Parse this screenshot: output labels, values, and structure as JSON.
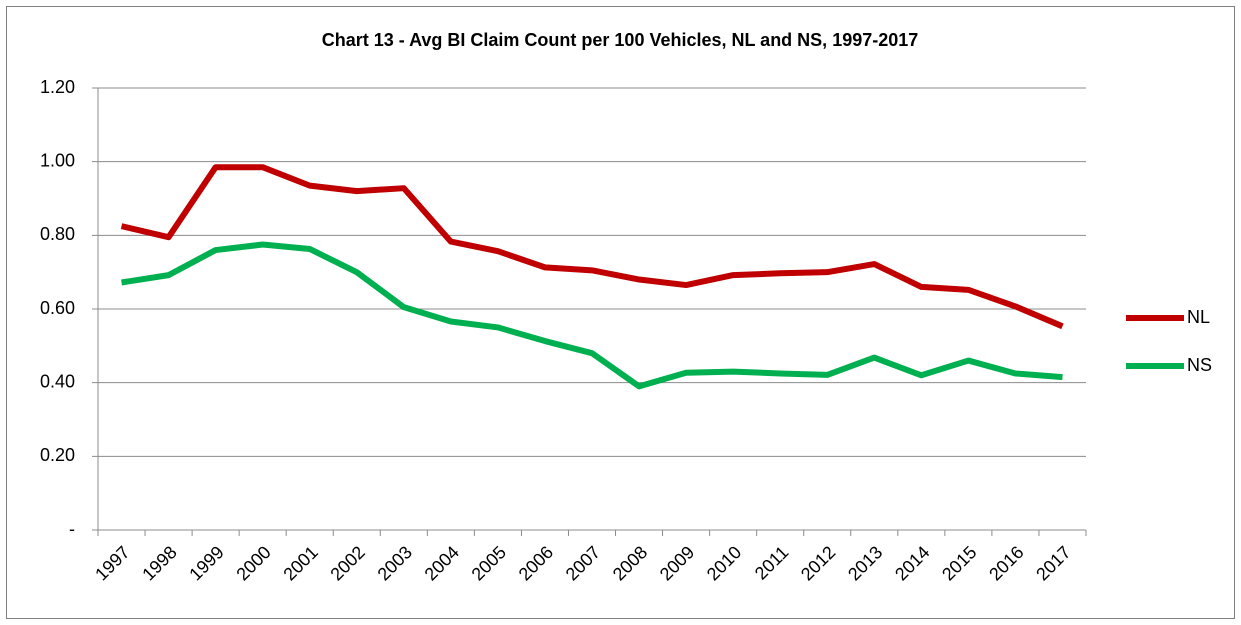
{
  "chart_data": {
    "type": "line",
    "title": "Chart 13 - Avg BI Claim Count per 100 Vehicles, NL and NS, 1997-2017",
    "categories": [
      "1997",
      "1998",
      "1999",
      "2000",
      "2001",
      "2002",
      "2003",
      "2004",
      "2005",
      "2006",
      "2007",
      "2008",
      "2009",
      "2010",
      "2011",
      "2012",
      "2013",
      "2014",
      "2015",
      "2016",
      "2017"
    ],
    "series": [
      {
        "name": "NL",
        "color": "#c00000",
        "values": [
          0.825,
          0.795,
          0.985,
          0.985,
          0.935,
          0.92,
          0.928,
          0.783,
          0.757,
          0.713,
          0.705,
          0.68,
          0.665,
          0.692,
          0.697,
          0.7,
          0.722,
          0.66,
          0.652,
          0.607,
          0.553
        ]
      },
      {
        "name": "NS",
        "color": "#00b050",
        "values": [
          0.672,
          0.692,
          0.76,
          0.775,
          0.763,
          0.7,
          0.605,
          0.566,
          0.55,
          0.513,
          0.48,
          0.39,
          0.427,
          0.43,
          0.425,
          0.421,
          0.468,
          0.42,
          0.46,
          0.425,
          0.415
        ]
      }
    ],
    "ylim": [
      0,
      1.2
    ],
    "yticks": [
      {
        "value": 0,
        "label": "-"
      },
      {
        "value": 0.2,
        "label": "0.20"
      },
      {
        "value": 0.4,
        "label": "0.40"
      },
      {
        "value": 0.6,
        "label": "0.60"
      },
      {
        "value": 0.8,
        "label": "0.80"
      },
      {
        "value": 1.0,
        "label": "1.00"
      },
      {
        "value": 1.2,
        "label": "1.20"
      }
    ],
    "grid": true,
    "legend": "right"
  }
}
